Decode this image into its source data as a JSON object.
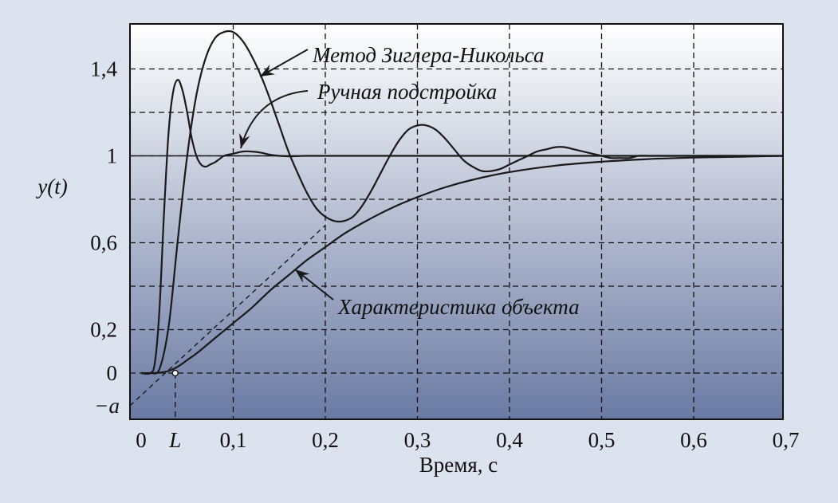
{
  "chart_data": {
    "type": "line",
    "xlabel": "Время, с",
    "ylabel": "y(t)",
    "xlim": [
      0,
      0.7
    ],
    "ylim": [
      -0.15,
      1.6
    ],
    "x_ticks": [
      0,
      0.1,
      0.2,
      0.3,
      0.4,
      0.5,
      0.6,
      0.7
    ],
    "x_tick_labels": [
      "0",
      "0,1",
      "0,2",
      "0,3",
      "0,4",
      "0,5",
      "0,6",
      "0,7"
    ],
    "x_special_tick": {
      "value": 0.037,
      "label": "L"
    },
    "y_ticks": [
      0,
      0.2,
      0.6,
      1,
      1.4
    ],
    "y_tick_labels": [
      "0",
      "0,2",
      "0,6",
      "1",
      "1,4"
    ],
    "y_special_tick": {
      "value": -0.15,
      "label": "−a"
    },
    "grid_x": [
      0.1,
      0.2,
      0.3,
      0.4,
      0.5,
      0.6
    ],
    "grid_y": [
      0,
      0.2,
      0.4,
      0.6,
      0.8,
      1,
      1.2,
      1.4
    ],
    "grid": true,
    "colors": {
      "line": "#1a1a1a",
      "grid": "#111111",
      "plot_top": "#ffffff",
      "plot_bottom": "#6a7aa3",
      "page_bg": "#dde2ef"
    },
    "series": [
      {
        "key": "zn",
        "x": [
          0,
          0.01,
          0.02,
          0.03,
          0.04,
          0.05,
          0.06,
          0.07,
          0.08,
          0.09,
          0.1,
          0.11,
          0.12,
          0.13,
          0.14,
          0.15,
          0.16,
          0.17,
          0.18,
          0.19,
          0.2,
          0.21,
          0.22,
          0.23,
          0.24,
          0.25,
          0.26,
          0.27,
          0.28,
          0.29,
          0.3,
          0.31,
          0.32,
          0.33,
          0.34,
          0.35,
          0.36,
          0.37,
          0.38,
          0.39,
          0.4,
          0.41,
          0.42,
          0.43,
          0.44,
          0.45,
          0.46,
          0.47,
          0.48,
          0.49,
          0.5,
          0.51,
          0.52,
          0.53,
          0.54,
          0.55,
          0.56,
          0.57,
          0.58,
          0.59,
          0.6,
          0.61,
          0.62,
          0.63,
          0.64,
          0.65,
          0.66,
          0.67,
          0.68,
          0.69,
          0.7
        ],
        "values": [
          0,
          0,
          0.02,
          0.22,
          0.62,
          1.0,
          1.28,
          1.45,
          1.54,
          1.57,
          1.57,
          1.53,
          1.46,
          1.37,
          1.26,
          1.14,
          1.02,
          0.92,
          0.83,
          0.76,
          0.72,
          0.7,
          0.7,
          0.72,
          0.77,
          0.84,
          0.92,
          1.0,
          1.07,
          1.12,
          1.14,
          1.14,
          1.12,
          1.08,
          1.03,
          0.98,
          0.95,
          0.93,
          0.93,
          0.94,
          0.96,
          0.98,
          1.0,
          1.02,
          1.03,
          1.04,
          1.04,
          1.03,
          1.02,
          1.01,
          1.0,
          0.99,
          0.99,
          0.99,
          1.0,
          1.0,
          1.0,
          1.0,
          1.0,
          1.0,
          1.0,
          1.0,
          1.0,
          1.0,
          1.0,
          1.0,
          1.0,
          1.0,
          1.0,
          1.0,
          1.0
        ]
      },
      {
        "key": "manual",
        "x": [
          0,
          0.01,
          0.015,
          0.02,
          0.025,
          0.03,
          0.035,
          0.04,
          0.045,
          0.05,
          0.055,
          0.06,
          0.065,
          0.07,
          0.075,
          0.08,
          0.085,
          0.09,
          0.1,
          0.11,
          0.12,
          0.13,
          0.14,
          0.15,
          0.16,
          0.17,
          0.18,
          0.2,
          0.25,
          0.3,
          0.4,
          0.5,
          0.6,
          0.7
        ],
        "values": [
          0,
          0,
          0.05,
          0.3,
          0.75,
          1.12,
          1.3,
          1.35,
          1.3,
          1.2,
          1.08,
          1.0,
          0.96,
          0.95,
          0.96,
          0.97,
          0.985,
          1.0,
          1.01,
          1.02,
          1.02,
          1.015,
          1.005,
          1.0,
          0.998,
          0.999,
          1.0,
          1.0,
          1.0,
          1.0,
          1.0,
          1.0,
          1.0,
          1.0
        ]
      },
      {
        "key": "plant",
        "x": [
          0,
          0.01,
          0.02,
          0.03,
          0.04,
          0.05,
          0.06,
          0.08,
          0.1,
          0.12,
          0.14,
          0.16,
          0.18,
          0.2,
          0.22,
          0.24,
          0.26,
          0.28,
          0.3,
          0.33,
          0.36,
          0.4,
          0.45,
          0.5,
          0.55,
          0.6,
          0.65,
          0.7
        ],
        "values": [
          0,
          0,
          0.002,
          0.01,
          0.03,
          0.06,
          0.09,
          0.16,
          0.23,
          0.3,
          0.38,
          0.45,
          0.52,
          0.58,
          0.64,
          0.69,
          0.735,
          0.775,
          0.81,
          0.855,
          0.89,
          0.925,
          0.955,
          0.973,
          0.985,
          0.992,
          0.996,
          1.0
        ]
      }
    ],
    "tangent_line": {
      "from": [
        0,
        -0.15
      ],
      "to": [
        0.2,
        0.68
      ]
    },
    "marker_point": [
      0.037,
      0
    ],
    "annotations": [
      {
        "key": "zn_label",
        "text": "Метод Зиглера-Никольса"
      },
      {
        "key": "manual_label",
        "text": "Ручная подстройка"
      },
      {
        "key": "plant_label",
        "text": "Характеристика объекта"
      }
    ]
  }
}
